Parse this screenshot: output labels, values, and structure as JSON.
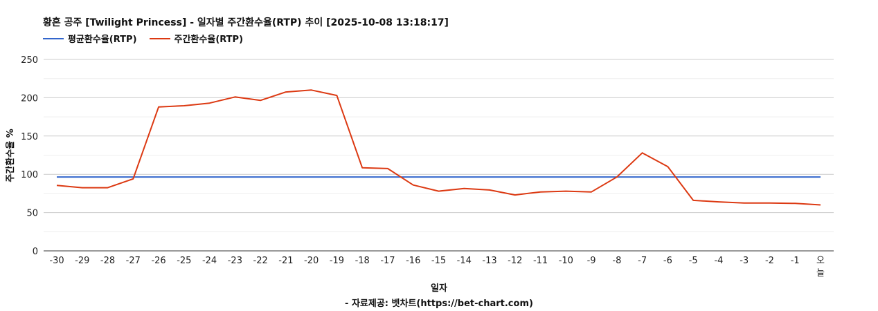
{
  "chart_data": {
    "type": "line",
    "title": "황혼 공주 [Twilight Princess] - 일자별 주간환수율(RTP) 추이 [2025-10-08 13:18:17]",
    "xlabel": "일자",
    "ylabel": "주간환수율 %",
    "ylim": [
      0,
      250
    ],
    "yticks": [
      0,
      50,
      100,
      150,
      200,
      250
    ],
    "grid": true,
    "legend_position": "top-left",
    "categories": [
      "-30",
      "-29",
      "-28",
      "-27",
      "-26",
      "-25",
      "-24",
      "-23",
      "-22",
      "-21",
      "-20",
      "-19",
      "-18",
      "-17",
      "-16",
      "-15",
      "-14",
      "-13",
      "-12",
      "-11",
      "-10",
      "-9",
      "-8",
      "-7",
      "-6",
      "-5",
      "-4",
      "-3",
      "-2",
      "-1",
      "오늘"
    ],
    "series": [
      {
        "name": "평균환수율(RTP)",
        "color": "#3366cc",
        "values": [
          96.5,
          96.5,
          96.5,
          96.5,
          96.5,
          96.5,
          96.5,
          96.5,
          96.5,
          96.5,
          96.5,
          96.5,
          96.5,
          96.5,
          96.5,
          96.5,
          96.5,
          96.5,
          96.5,
          96.5,
          96.5,
          96.5,
          96.5,
          96.5,
          96.5,
          96.5,
          96.5,
          96.5,
          96.5,
          96.5,
          96.5
        ]
      },
      {
        "name": "주간환수율(RTP)",
        "color": "#dc3912",
        "values": [
          85.5,
          82.5,
          82.5,
          94,
          188,
          189.5,
          193,
          201,
          196.5,
          207.5,
          210,
          203,
          108.5,
          107.5,
          86,
          78,
          81.5,
          79.5,
          73,
          77,
          78,
          77,
          96.5,
          128,
          110,
          66,
          64,
          62.5,
          62.5,
          62,
          60
        ]
      }
    ]
  },
  "source": "- 자료제공: 벳차트(https://bet-chart.com)"
}
